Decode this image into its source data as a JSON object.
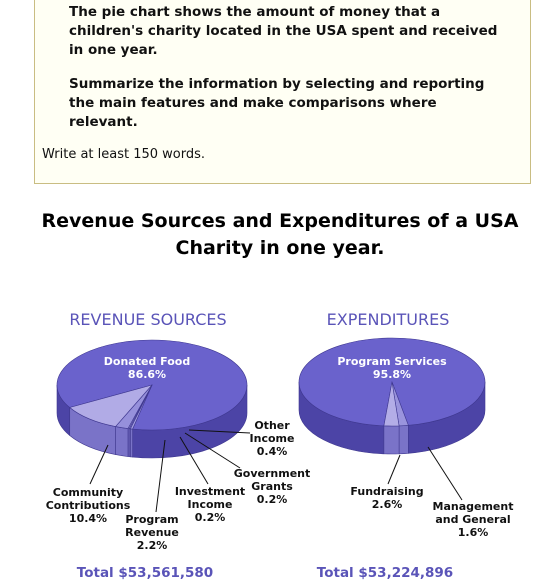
{
  "prompt": {
    "paragraphs": [
      "The pie chart shows the amount of money that a children's charity located in the USA spent and received in one year.",
      "Summarize the information by selecting and reporting the main features and make comparisons where relevant."
    ],
    "note": "Write at least 150 words."
  },
  "title": "Revenue Sources and Expenditures of a USA Charity in one year.",
  "chart_data": [
    {
      "type": "pie",
      "title": "REVENUE SOURCES",
      "total": "Total $53,561,580",
      "categories": [
        "Donated Food",
        "Other\nIncome",
        "Government\nGrants",
        "Investment\nIncome",
        "Program\nRevenue",
        "Community\nContributions"
      ],
      "values": [
        86.6,
        0.4,
        0.2,
        0.2,
        2.2,
        10.4
      ],
      "value_labels": [
        "86.6%",
        "0.4%",
        "0.2%",
        "0.2%",
        "2.2%",
        "10.4%"
      ],
      "colors": [
        "#6a62cc",
        "#a29ce0",
        "#8f88d9",
        "#a9a3e3",
        "#9690db",
        "#b1abe6"
      ]
    },
    {
      "type": "pie",
      "title": "EXPENDITURES",
      "total": "Total $53,224,896",
      "categories": [
        "Program Services",
        "Management\nand General",
        "Fundraising"
      ],
      "values": [
        95.8,
        1.6,
        2.6
      ],
      "value_labels": [
        "95.8%",
        "1.6%",
        "2.6%"
      ],
      "colors": [
        "#6a62cc",
        "#9a94dd",
        "#b3ade7"
      ]
    }
  ]
}
